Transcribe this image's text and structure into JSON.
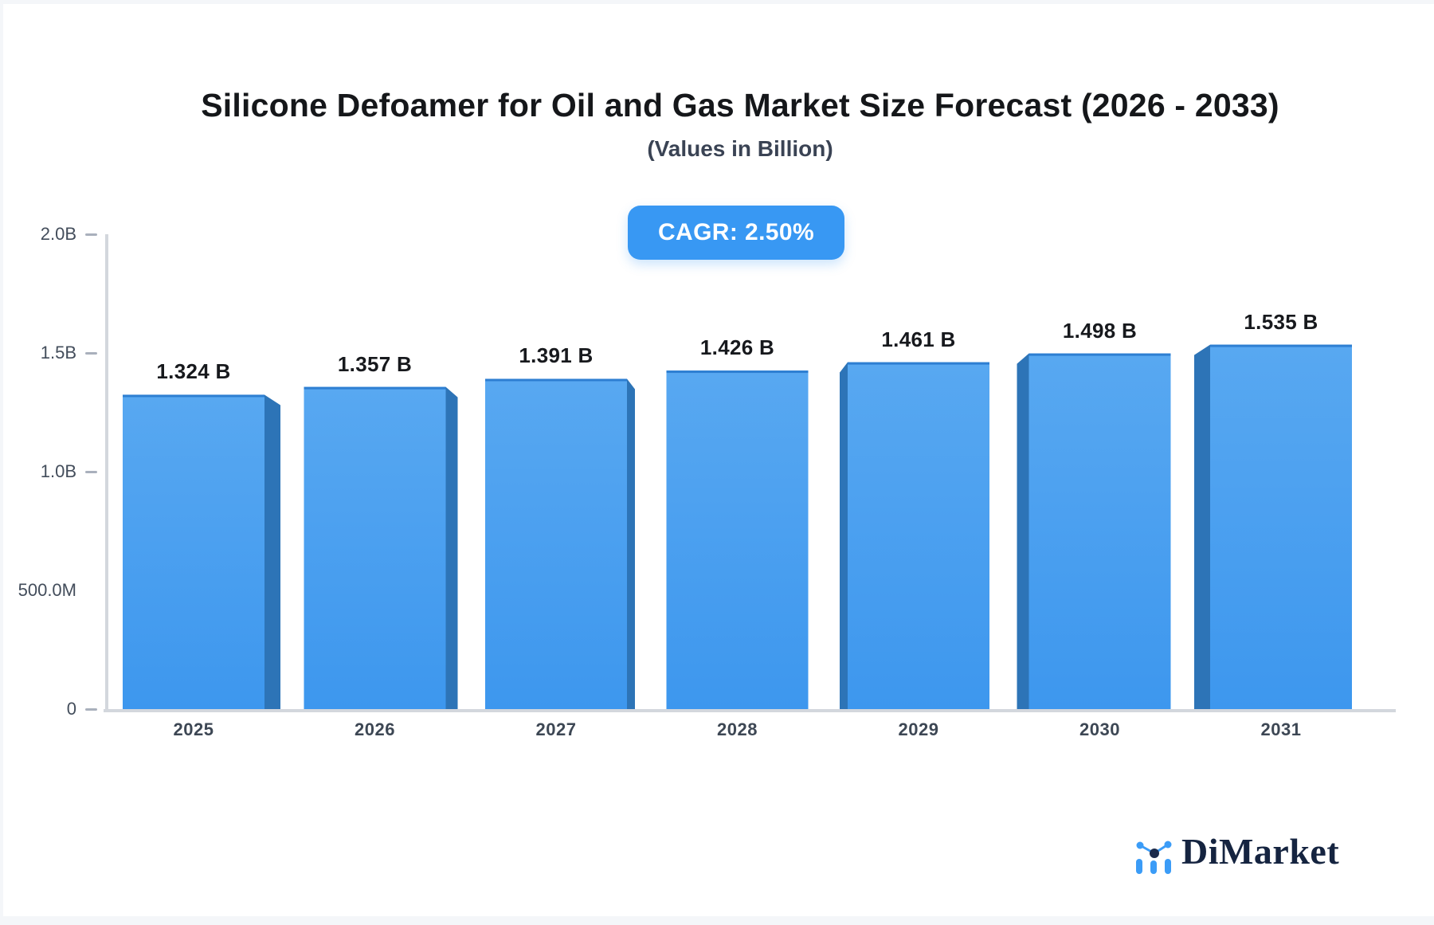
{
  "header": {
    "title": "Silicone Defoamer for Oil and Gas Market Size Forecast (2026 - 2033)",
    "subtitle": "(Values in Billion)",
    "cagr_label": "CAGR: 2.50%"
  },
  "footer": {
    "brand": "DiMarket"
  },
  "colors": {
    "accent": "#3898f3",
    "bar_front_top": "#58a8f1",
    "bar_front_bottom": "#3d97ee",
    "bar_top_edge": "#2e7fd2",
    "bar_side": "#2d74b7",
    "axis_line": "#d3d7dd",
    "tick": "#a9b0bc",
    "tick_text": "#434d5b",
    "value_text": "#17191d",
    "logo_blue": "#3b9cf7",
    "logo_navy": "#1b2a4a"
  },
  "chart_data": {
    "type": "bar",
    "title": "Silicone Defoamer for Oil and Gas Market Size Forecast (2026 - 2033)",
    "subtitle": "(Values in Billion)",
    "cagr_badge": "CAGR: 2.50%",
    "categories": [
      "2025",
      "2026",
      "2027",
      "2028",
      "2029",
      "2030",
      "2031"
    ],
    "values": [
      1.324,
      1.357,
      1.391,
      1.426,
      1.461,
      1.498,
      1.535
    ],
    "value_labels": [
      "1.324 B",
      "1.357 B",
      "1.391 B",
      "1.426 B",
      "1.461 B",
      "1.498 B",
      "1.535 B"
    ],
    "unit": "Billion",
    "xlabel": "",
    "ylabel": "",
    "ylim": [
      0,
      2.0
    ],
    "grid": false,
    "legend_position": "none",
    "y_ticks": [
      {
        "label": "2.0B",
        "value": 2.0,
        "dash": true
      },
      {
        "label": "1.5B",
        "value": 1.5,
        "dash": true
      },
      {
        "label": "1.0B",
        "value": 1.0,
        "dash": true
      },
      {
        "label": "500.0M",
        "value": 0.5,
        "dash": false
      },
      {
        "label": "0",
        "value": 0.0,
        "dash": true
      }
    ]
  }
}
